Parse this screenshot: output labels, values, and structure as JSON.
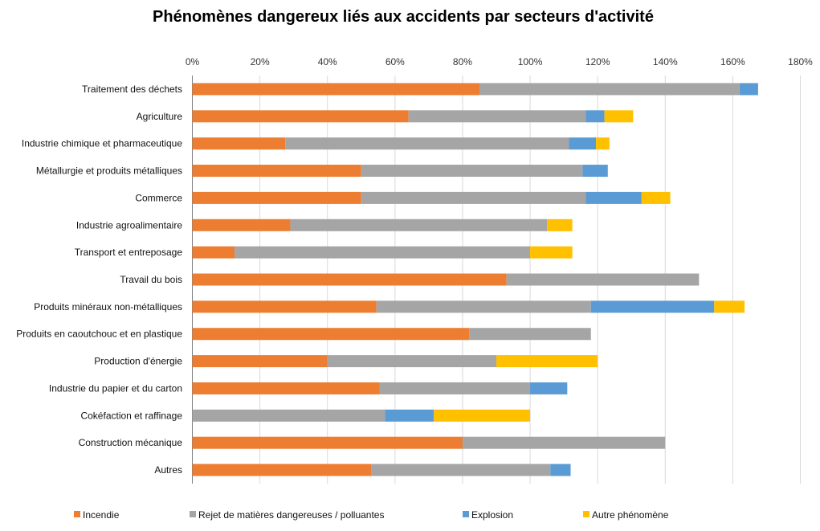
{
  "chart_data": {
    "type": "bar",
    "orientation": "horizontal",
    "stacked": true,
    "title": "Phénomènes dangereux liés aux accidents par secteurs d'activité",
    "xlabel": "",
    "ylabel": "",
    "xlim": [
      0,
      180
    ],
    "x_axis_position": "top",
    "x_ticks": [
      "0%",
      "20%",
      "40%",
      "60%",
      "80%",
      "100%",
      "120%",
      "140%",
      "160%",
      "180%"
    ],
    "grid": true,
    "legend_position": "bottom",
    "categories": [
      "Traitement des déchets",
      "Agriculture",
      "Industrie chimique et pharmaceutique",
      "Métallurgie et produits métalliques",
      "Commerce",
      "Industrie agroalimentaire",
      "Transport et entreposage",
      "Travail du bois",
      "Produits minéraux non-métalliques",
      "Produits en caoutchouc et en plastique",
      "Production d'énergie",
      "Industrie du papier et du carton",
      "Cokéfaction et raffinage",
      "Construction mécanique",
      "Autres"
    ],
    "series": [
      {
        "name": "Incendie",
        "color": "#ED7D31",
        "values": [
          85,
          64,
          27.5,
          50,
          50,
          29,
          12.5,
          93,
          54.5,
          82,
          40,
          55.5,
          0,
          80,
          53
        ]
      },
      {
        "name": "Rejet de matières dangereuses / polluantes",
        "color": "#A5A5A5",
        "values": [
          77,
          52.5,
          84,
          65.5,
          66.5,
          76,
          87.5,
          57,
          63.5,
          36,
          50,
          44.5,
          57,
          60,
          53
        ]
      },
      {
        "name": "Explosion",
        "color": "#5B9BD5",
        "values": [
          5.5,
          5.5,
          8,
          7.5,
          16.5,
          0,
          0,
          0,
          36.5,
          0,
          0,
          11,
          14.5,
          0,
          6
        ]
      },
      {
        "name": "Autre phénomène",
        "color": "#FFC000",
        "values": [
          0,
          8.5,
          4,
          0,
          8.5,
          7.5,
          12.5,
          0,
          9,
          0,
          30,
          0,
          28.5,
          0,
          0
        ]
      }
    ]
  }
}
